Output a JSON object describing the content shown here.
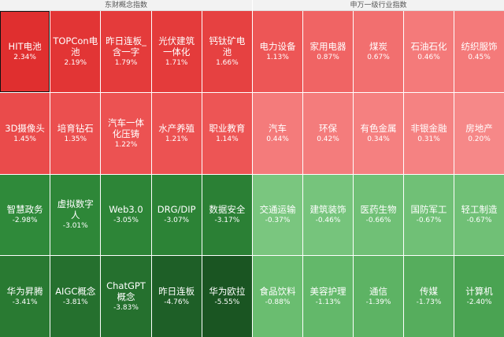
{
  "left_panel": {
    "title": "东财概念指数",
    "items": [
      {
        "name": "HIT电池",
        "pct": "2.34%",
        "color": "#e02f2f",
        "selected": true
      },
      {
        "name": "TOPCon电池",
        "pct": "2.19%",
        "color": "#e23535"
      },
      {
        "name": "昨日连板_含一字",
        "pct": "1.79%",
        "color": "#e43b3b"
      },
      {
        "name": "光伏建筑一体化",
        "pct": "1.71%",
        "color": "#e43b3b"
      },
      {
        "name": "钙钛矿电池",
        "pct": "1.66%",
        "color": "#e64141"
      },
      {
        "name": "3D摄像头",
        "pct": "1.45%",
        "color": "#ea4b4b"
      },
      {
        "name": "培育钻石",
        "pct": "1.35%",
        "color": "#eb4f4f"
      },
      {
        "name": "汽车一体化压铸",
        "pct": "1.22%",
        "color": "#ec5252"
      },
      {
        "name": "水产养殖",
        "pct": "1.21%",
        "color": "#ec5252"
      },
      {
        "name": "职业教育",
        "pct": "1.14%",
        "color": "#ed5555"
      },
      {
        "name": "智慧政务",
        "pct": "-2.98%",
        "color": "#2f8a3a"
      },
      {
        "name": "虚拟数字人",
        "pct": "-3.01%",
        "color": "#2e8738"
      },
      {
        "name": "Web3.0",
        "pct": "-3.05%",
        "color": "#2d8537"
      },
      {
        "name": "DRG/DIP",
        "pct": "-3.07%",
        "color": "#2c8336"
      },
      {
        "name": "数据安全",
        "pct": "-3.17%",
        "color": "#2b8035"
      },
      {
        "name": "华为昇腾",
        "pct": "-3.41%",
        "color": "#297a32"
      },
      {
        "name": "AIGC概念",
        "pct": "-3.81%",
        "color": "#25702e"
      },
      {
        "name": "ChatGPT概念",
        "pct": "-3.83%",
        "color": "#25702e"
      },
      {
        "name": "昨日连板",
        "pct": "-4.76%",
        "color": "#1e5f27"
      },
      {
        "name": "华为欧拉",
        "pct": "-5.55%",
        "color": "#1a5522"
      }
    ]
  },
  "right_panel": {
    "title": "申万一级行业指数",
    "items": [
      {
        "name": "电力设备",
        "pct": "1.13%",
        "color": "#ed5656"
      },
      {
        "name": "家用电器",
        "pct": "0.87%",
        "color": "#f06464"
      },
      {
        "name": "煤炭",
        "pct": "0.67%",
        "color": "#f26f6f"
      },
      {
        "name": "石油石化",
        "pct": "0.46%",
        "color": "#f47a7a"
      },
      {
        "name": "纺织服饰",
        "pct": "0.45%",
        "color": "#f47a7a"
      },
      {
        "name": "汽车",
        "pct": "0.44%",
        "color": "#f47b7b"
      },
      {
        "name": "环保",
        "pct": "0.42%",
        "color": "#f47c7c"
      },
      {
        "name": "有色金属",
        "pct": "0.34%",
        "color": "#f58080"
      },
      {
        "name": "非银金融",
        "pct": "0.31%",
        "color": "#f58282"
      },
      {
        "name": "房地产",
        "pct": "0.20%",
        "color": "#f68888"
      },
      {
        "name": "交通运输",
        "pct": "-0.37%",
        "color": "#7ac67f"
      },
      {
        "name": "建筑装饰",
        "pct": "-0.46%",
        "color": "#76c47c"
      },
      {
        "name": "医药生物",
        "pct": "-0.66%",
        "color": "#70c076"
      },
      {
        "name": "国防军工",
        "pct": "-0.67%",
        "color": "#70c076"
      },
      {
        "name": "轻工制造",
        "pct": "-0.67%",
        "color": "#70c076"
      },
      {
        "name": "食品饮料",
        "pct": "-0.88%",
        "color": "#6abd70"
      },
      {
        "name": "美容护理",
        "pct": "-1.13%",
        "color": "#63b86a"
      },
      {
        "name": "通信",
        "pct": "-1.39%",
        "color": "#5db364"
      },
      {
        "name": "传媒",
        "pct": "-1.73%",
        "color": "#56ad5d"
      },
      {
        "name": "计算机",
        "pct": "-2.40%",
        "color": "#4aa352"
      }
    ]
  }
}
